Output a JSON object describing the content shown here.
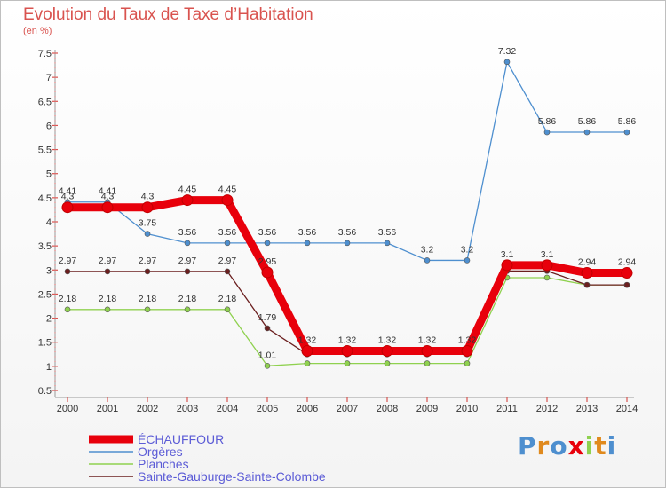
{
  "chart_data": {
    "type": "line",
    "title": "Evolution du Taux de Taxe d’Habitation",
    "subtitle": "(en %)",
    "x": [
      "2000",
      "2001",
      "2002",
      "2003",
      "2004",
      "2005",
      "2006",
      "2007",
      "2008",
      "2009",
      "2010",
      "2011",
      "2012",
      "2013",
      "2014"
    ],
    "ylim": [
      0.5,
      7.5
    ],
    "yticks": [
      "0.5",
      "1",
      "1.5",
      "2",
      "2.5",
      "3",
      "3.5",
      "4",
      "4.5",
      "5",
      "5.5",
      "6",
      "6.5",
      "7",
      "7.5"
    ],
    "grid": false,
    "legend_position": "bottom-left",
    "series": [
      {
        "name": "ÉCHAUFFOUR",
        "color": "#e8000b",
        "values": [
          4.3,
          4.3,
          4.3,
          4.45,
          4.45,
          2.95,
          1.32,
          1.32,
          1.32,
          1.32,
          1.32,
          3.1,
          3.1,
          2.94,
          2.94
        ],
        "labels": [
          "4.3",
          "4.3",
          "4.3",
          "4.45",
          "4.45",
          "2.95",
          "1.32",
          "1.32",
          "1.32",
          "1.32",
          "1.32",
          "3.1",
          "3.1",
          "2.94",
          "2.94"
        ]
      },
      {
        "name": "Orgères",
        "color": "#4e8fcf",
        "values": [
          4.41,
          4.41,
          3.75,
          3.56,
          3.56,
          3.56,
          3.56,
          3.56,
          3.56,
          3.2,
          3.2,
          7.32,
          5.86,
          5.86,
          5.86
        ],
        "labels": [
          "4.41",
          "4.41",
          "3.75",
          "3.56",
          "3.56",
          "3.56",
          "3.56",
          "3.56",
          "3.56",
          "3.2",
          "3.2",
          "7.32",
          "5.86",
          "5.86",
          "5.86"
        ]
      },
      {
        "name": "Planches",
        "color": "#8fd14f",
        "values": [
          2.18,
          2.18,
          2.18,
          2.18,
          2.18,
          1.01,
          1.06,
          1.06,
          1.06,
          1.06,
          1.06,
          2.84,
          2.84,
          2.69,
          2.69
        ],
        "labels": [
          "2.18",
          "2.18",
          "2.18",
          "2.18",
          "2.18",
          "1.01",
          "",
          "",
          "",
          "",
          "",
          "",
          "",
          "",
          ""
        ]
      },
      {
        "name": "Sainte-Gauburge-Sainte-Colombe",
        "color": "#6b1f1f",
        "values": [
          2.97,
          2.97,
          2.97,
          2.97,
          2.97,
          1.79,
          1.25,
          1.25,
          1.25,
          1.25,
          1.25,
          2.98,
          2.98,
          2.69,
          2.69
        ],
        "labels": [
          "2.97",
          "2.97",
          "2.97",
          "2.97",
          "2.97",
          "1.79",
          "",
          "",
          "",
          "",
          "",
          "",
          "",
          "",
          ""
        ]
      }
    ]
  },
  "brand": {
    "letters": [
      "P",
      "r",
      "o",
      "x",
      "i",
      "t",
      "i"
    ],
    "colors": [
      "#4e8fcf",
      "#e08a1e",
      "#4e8fcf",
      "#e8000b",
      "#8fd14f",
      "#e08a1e",
      "#4e8fcf"
    ]
  }
}
